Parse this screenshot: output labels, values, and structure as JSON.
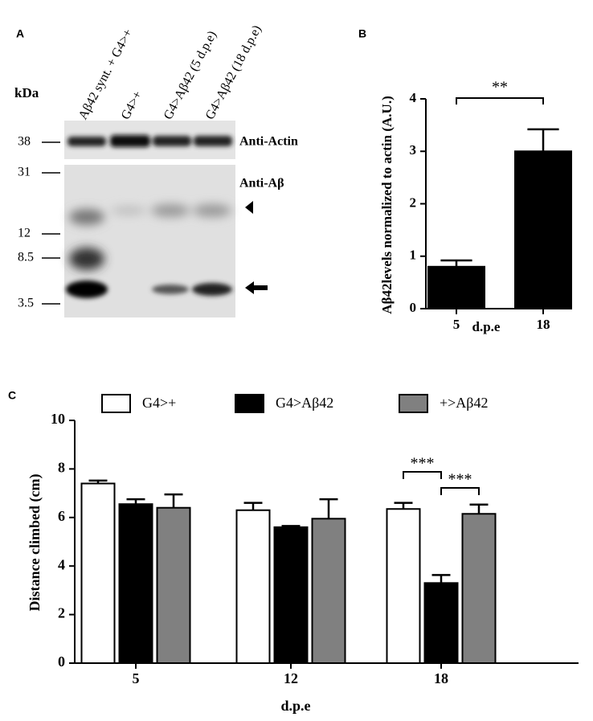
{
  "panels": [
    "A",
    "B",
    "C"
  ],
  "blot": {
    "kda_label": "kDa",
    "lanes": [
      "Aβ42 synt. + G4>+",
      "G4>+",
      "G4>Aβ42 (5 d.p.e)",
      "G4>Aβ42 (18 d.p.e)"
    ],
    "markers": [
      38,
      31,
      12,
      8.5,
      3.5
    ],
    "antibodies": [
      "Anti-Actin",
      "Anti-Aβ"
    ]
  },
  "chart_data": [
    {
      "type": "bar",
      "categories": [
        "5",
        "18"
      ],
      "values": [
        0.8,
        3.0
      ],
      "errors": [
        0.12,
        0.42
      ],
      "color": "#000000",
      "ylabel": "Aβ42levels normalized to actin (A.U.)",
      "xlabel": "d.p.e",
      "ylim": [
        0,
        4
      ],
      "yticks": [
        0,
        1,
        2,
        3,
        4
      ],
      "significance": [
        "**"
      ]
    },
    {
      "type": "grouped_bar",
      "categories": [
        "5",
        "12",
        "18"
      ],
      "series": [
        {
          "name": "G4>+",
          "color": "#ffffff",
          "values": [
            7.4,
            6.3,
            6.35
          ],
          "errors": [
            0.12,
            0.3,
            0.25
          ]
        },
        {
          "name": "G4>Aβ42",
          "color": "#000000",
          "values": [
            6.55,
            5.6,
            3.3
          ],
          "errors": [
            0.2,
            0.05,
            0.33
          ]
        },
        {
          "name": "+>Aβ42",
          "color": "#808080",
          "values": [
            6.4,
            5.95,
            6.15
          ],
          "errors": [
            0.55,
            0.8,
            0.38
          ]
        }
      ],
      "ylabel": "Distance climbed (cm)",
      "xlabel": "d.p.e",
      "ylim": [
        0,
        10
      ],
      "yticks": [
        0,
        2,
        4,
        6,
        8,
        10
      ],
      "significance": [
        "***",
        "***"
      ]
    }
  ]
}
